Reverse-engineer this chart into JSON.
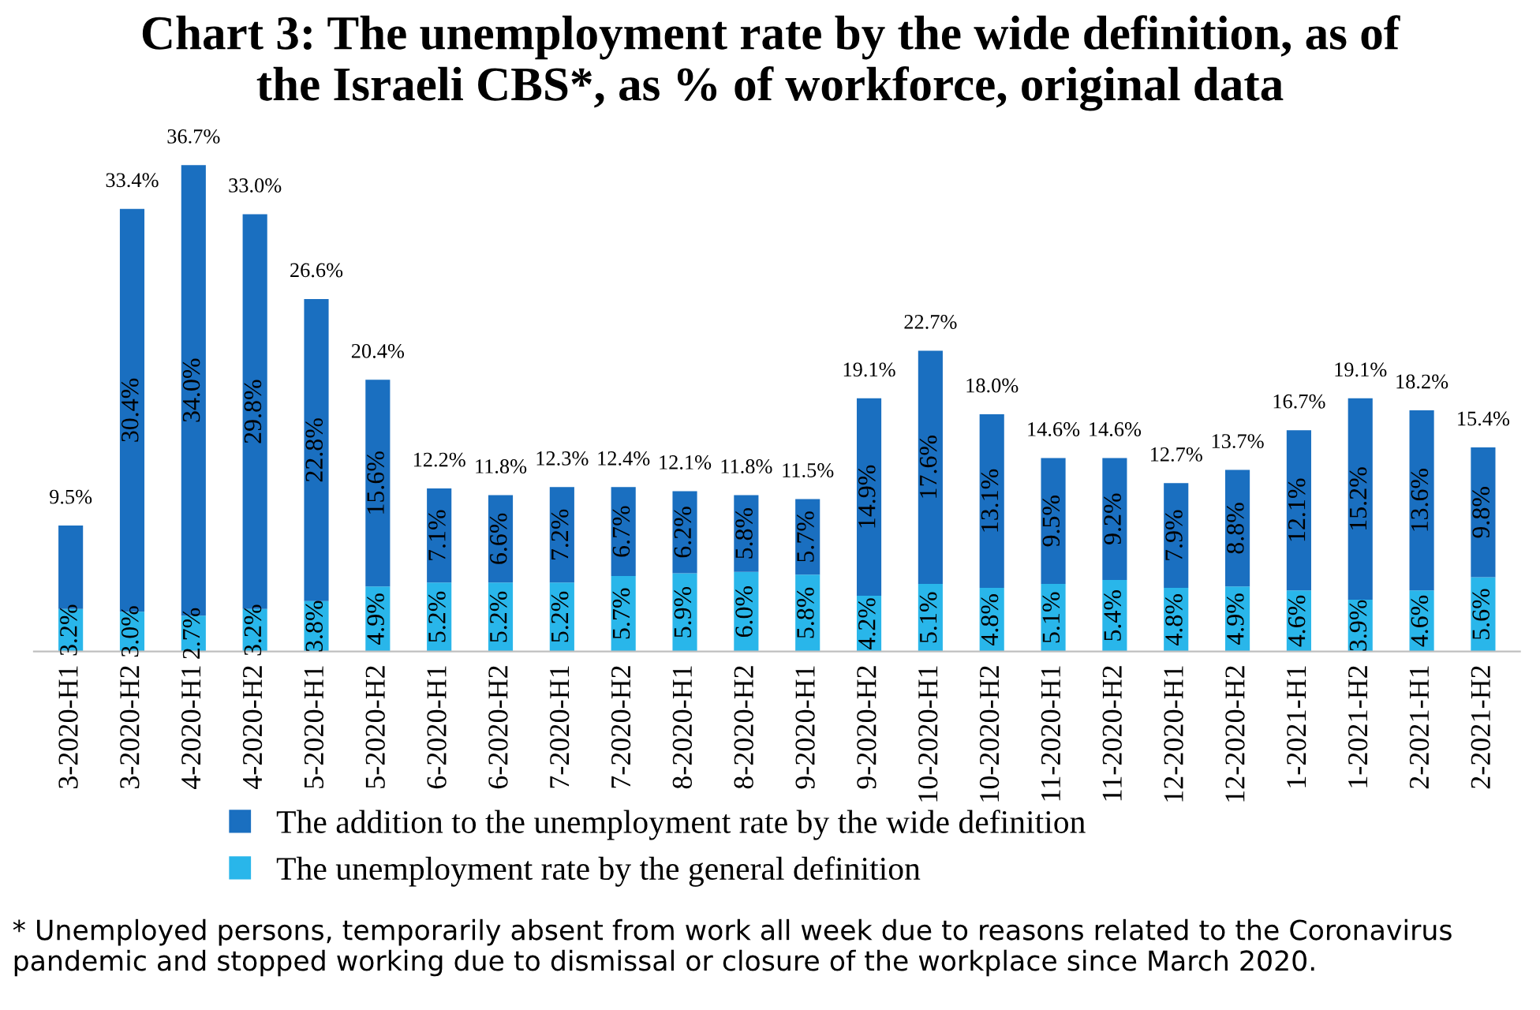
{
  "chart_data": {
    "type": "bar",
    "stacked": true,
    "title": "Chart 3: The unemployment rate by the wide definition, as of\nthe Israeli CBS*, as % of workforce, original data",
    "categories": [
      "3-2020-H1",
      "3-2020-H2",
      "4-2020-H1",
      "4-2020-H2",
      "5-2020-H1",
      "5-2020-H2",
      "6-2020-H1",
      "6-2020-H2",
      "7-2020-H1",
      "7-2020-H2",
      "8-2020-H1",
      "8-2020-H2",
      "9-2020-H1",
      "9-2020-H2",
      "10-2020-H1",
      "10-2020-H2",
      "11-2020-H1",
      "11-2020-H2",
      "12-2020-H1",
      "12-2020-H2",
      "1-2021-H1",
      "1-2021-H2",
      "2-2021-H1",
      "2-2021-H2"
    ],
    "series": [
      {
        "name": "The unemployment rate by the general definition",
        "color": "#29b6ea",
        "values": [
          3.2,
          3.0,
          2.7,
          3.2,
          3.8,
          4.9,
          5.2,
          5.2,
          5.2,
          5.7,
          5.9,
          6.0,
          5.8,
          4.2,
          5.1,
          4.8,
          5.1,
          5.4,
          4.8,
          4.9,
          4.6,
          3.9,
          4.6,
          5.6
        ],
        "value_labels": [
          "3.2%",
          "3.0%",
          "2.7%",
          "3.2%",
          "3.8%",
          "4.9%",
          "5.2%",
          "5.2%",
          "5.2%",
          "5.7%",
          "5.9%",
          "6.0%",
          "5.8%",
          "4.2%",
          "5.1%",
          "4.8%",
          "5.1%",
          "5.4%",
          "4.8%",
          "4.9%",
          "4.6%",
          "3.9%",
          "4.6%",
          "5.6%"
        ]
      },
      {
        "name": "The addition to the unemployment rate by the wide definition",
        "color": "#1a6fc0",
        "values": [
          6.3,
          30.4,
          34.0,
          29.8,
          22.8,
          15.6,
          7.1,
          6.6,
          7.2,
          6.7,
          6.2,
          5.8,
          5.7,
          14.9,
          17.6,
          13.1,
          9.5,
          9.2,
          7.9,
          8.8,
          12.1,
          15.2,
          13.6,
          9.8
        ],
        "value_labels": [
          null,
          "30.4%",
          "34.0%",
          "29.8%",
          "22.8%",
          "15.6%",
          "7.1%",
          "6.6%",
          "7.2%",
          "6.7%",
          "6.2%",
          "5.8%",
          "5.7%",
          "14.9%",
          "17.6%",
          "13.1%",
          "9.5%",
          "9.2%",
          "7.9%",
          "8.8%",
          "12.1%",
          "15.2%",
          "13.6%",
          "9.8%"
        ]
      }
    ],
    "totals": [
      "9.5%",
      "33.4%",
      "36.7%",
      "33.0%",
      "26.6%",
      "20.4%",
      "12.2%",
      "11.8%",
      "12.3%",
      "12.4%",
      "12.1%",
      "11.8%",
      "11.5%",
      "19.1%",
      "22.7%",
      "18.0%",
      "14.6%",
      "14.6%",
      "12.7%",
      "13.7%",
      "16.7%",
      "19.1%",
      "18.2%",
      "15.4%"
    ],
    "legend": "bottom",
    "grid": false,
    "annotations": [
      "* Unemployed persons, temporarily absent from work all week due to reasons related to the Coronavirus pandemic and stopped working due to dismissal or closure of the workplace since March 2020."
    ]
  }
}
